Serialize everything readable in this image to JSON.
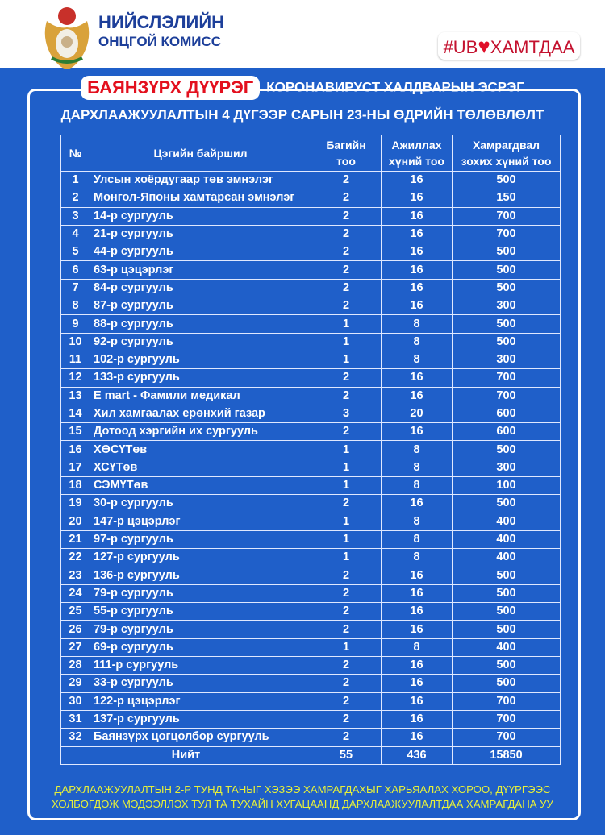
{
  "header": {
    "org_line1": "НИЙСЛЭЛИЙН",
    "org_line2": "ОНЦГОЙ КОМИСС",
    "hashtag_left": "#UB",
    "hashtag_right": "ХАМТДАА",
    "colors": {
      "background": "#1f5fc9",
      "accent": "#e3101e",
      "footer_text": "#e6f03a"
    }
  },
  "title": {
    "district": "БАЯНЗҮРХ ДҮҮРЭГ",
    "line1": "КОРОНАВИРУСТ ХАЛДВАРЫН ЭСРЭГ",
    "line2": "ДАРХЛААЖУУЛАЛТЫН 4 ДҮГЭЭР САРЫН 23-НЫ ӨДРИЙН ТӨЛӨВЛӨЛТ"
  },
  "table": {
    "headers": [
      "№",
      "Цэгийн байршил",
      "Багийн тоо",
      "Ажиллах хүний тоо",
      "Хамрагдвал зохих хүний тоо"
    ],
    "rows": [
      [
        "1",
        "Улсын хоёрдугаар төв эмнэлэг",
        "2",
        "16",
        "500"
      ],
      [
        "2",
        "Монгол-Японы хамтарсан эмнэлэг",
        "2",
        "16",
        "150"
      ],
      [
        "3",
        "14-р сургууль",
        "2",
        "16",
        "700"
      ],
      [
        "4",
        "21-р сургууль",
        "2",
        "16",
        "700"
      ],
      [
        "5",
        "44-р сургууль",
        "2",
        "16",
        "500"
      ],
      [
        "6",
        "63-р цэцэрлэг",
        "2",
        "16",
        "500"
      ],
      [
        "7",
        "84-р сургууль",
        "2",
        "16",
        "500"
      ],
      [
        "8",
        "87-р сургууль",
        "2",
        "16",
        "300"
      ],
      [
        "9",
        "88-р сургууль",
        "1",
        "8",
        "500"
      ],
      [
        "10",
        "92-р сургууль",
        "1",
        "8",
        "500"
      ],
      [
        "11",
        "102-р сургууль",
        "1",
        "8",
        "300"
      ],
      [
        "12",
        "133-р сургууль",
        "2",
        "16",
        "700"
      ],
      [
        "13",
        "E mart - Фамили медикал",
        "2",
        "16",
        "700"
      ],
      [
        "14",
        "Хил хамгаалах ерөнхий газар",
        "3",
        "20",
        "600"
      ],
      [
        "15",
        "Дотоод хэргийн их сургууль",
        "2",
        "16",
        "600"
      ],
      [
        "16",
        "ХӨСҮТөв",
        "1",
        "8",
        "500"
      ],
      [
        "17",
        "ХСҮТөв",
        "1",
        "8",
        "300"
      ],
      [
        "18",
        "СЭМҮТөв",
        "1",
        "8",
        "100"
      ],
      [
        "19",
        "30-р сургууль",
        "2",
        "16",
        "500"
      ],
      [
        "20",
        "147-р цэцэрлэг",
        "1",
        "8",
        "400"
      ],
      [
        "21",
        "97-р сургууль",
        "1",
        "8",
        "400"
      ],
      [
        "22",
        "127-р сургууль",
        "1",
        "8",
        "400"
      ],
      [
        "23",
        "136-р сургууль",
        "2",
        "16",
        "500"
      ],
      [
        "24",
        "79-р сургууль",
        "2",
        "16",
        "500"
      ],
      [
        "25",
        "55-р сургууль",
        "2",
        "16",
        "500"
      ],
      [
        "26",
        "79-р сургууль",
        "2",
        "16",
        "500"
      ],
      [
        "27",
        "69-р сургууль",
        "1",
        "8",
        "400"
      ],
      [
        "28",
        "111-р сургууль",
        "2",
        "16",
        "500"
      ],
      [
        "29",
        "33-р сургууль",
        "2",
        "16",
        "500"
      ],
      [
        "30",
        "122-р цэцэрлэг",
        "2",
        "16",
        "700"
      ],
      [
        "31",
        "137-р сургууль",
        "2",
        "16",
        "700"
      ],
      [
        "32",
        "Баянзүрх цогцолбор сургууль",
        "2",
        "16",
        "700"
      ]
    ],
    "total": {
      "label": "Нийт",
      "teams": "55",
      "staff": "436",
      "people": "15850"
    }
  },
  "footer": {
    "line1": "ДАРХЛААЖУУЛАЛТЫН 2-Р ТУНД ТАНЫГ ХЭЗЭЭ ХАМРАГДАХЫГ ХАРЬЯАЛАХ ХОРОО, ДҮҮРГЭЭС",
    "line2": "ХОЛБОГДОЖ МЭДЭЭЛЛЭХ ТУЛ ТА ТУХАЙН ХУГАЦААНД ДАРХЛААЖУУЛАЛТДАА ХАМРАГДАНА УУ"
  }
}
